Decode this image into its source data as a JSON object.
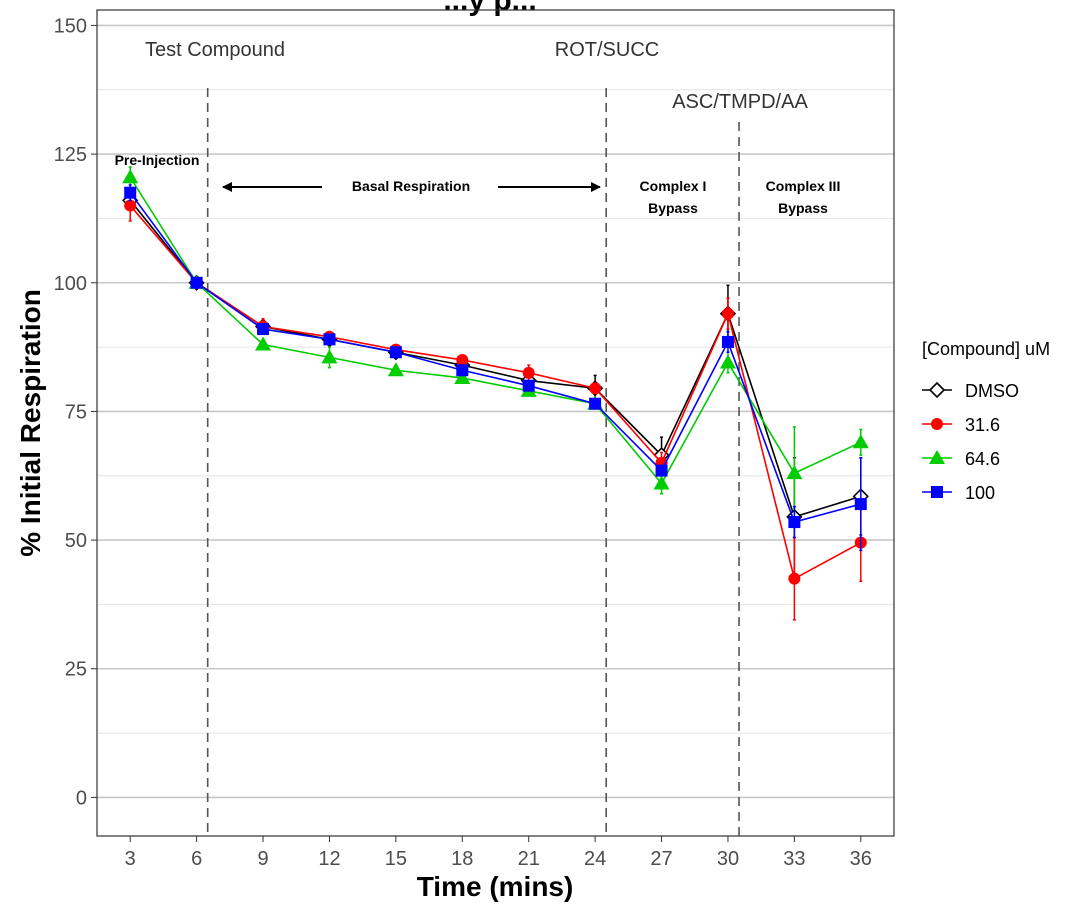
{
  "chart_data": {
    "type": "line",
    "title": "...y p...",
    "xlabel": "Time (mins)",
    "ylabel": "% Initial Respiration",
    "x": [
      3,
      6,
      9,
      12,
      15,
      18,
      21,
      24,
      27,
      30,
      33,
      36
    ],
    "xlim": [
      1.5,
      37.5
    ],
    "ylim": [
      -7.5,
      153
    ],
    "y_ticks": [
      0,
      25,
      50,
      75,
      100,
      125,
      150
    ],
    "x_ticks": [
      3,
      6,
      9,
      12,
      15,
      18,
      21,
      24,
      27,
      30,
      33,
      36
    ],
    "grid": true,
    "legend_title": "[Compound] uM",
    "legend_position": "right",
    "series": [
      {
        "name": "DMSO",
        "color": "#000000",
        "marker": "diamond-open",
        "values": [
          116,
          100,
          91.5,
          89,
          86.5,
          84,
          81,
          79.5,
          66.5,
          94,
          54.5,
          58.5
        ],
        "err": [
          1.5,
          0.5,
          1,
          0.8,
          0.8,
          0.8,
          0.8,
          2.5,
          3.5,
          5.5,
          11.5,
          7.5
        ]
      },
      {
        "name": "31.6",
        "color": "#ff0000",
        "marker": "circle",
        "values": [
          115,
          100,
          91.5,
          89.5,
          87,
          85,
          82.5,
          79.5,
          65,
          94,
          42.5,
          49.5
        ],
        "err": [
          3,
          0.5,
          1.5,
          1,
          0.8,
          0.8,
          1.5,
          1,
          2,
          3,
          8,
          7.5
        ]
      },
      {
        "name": "64.6",
        "color": "#00cc00",
        "marker": "triangle",
        "values": [
          120.5,
          100,
          88,
          85.5,
          83,
          81.5,
          79,
          76.5,
          61,
          84.5,
          63,
          69
        ],
        "err": [
          2,
          0.8,
          0.8,
          2,
          0.8,
          0.8,
          0.8,
          0.8,
          2,
          2,
          9,
          2.5
        ]
      },
      {
        "name": "100",
        "color": "#0000ff",
        "marker": "square",
        "values": [
          117.5,
          100,
          91,
          89,
          86.5,
          83,
          80,
          76.5,
          63.5,
          88.5,
          53.5,
          57
        ],
        "err": [
          1.5,
          0.5,
          1,
          0.8,
          0.8,
          0.8,
          0.8,
          0.8,
          1,
          2,
          3,
          9
        ]
      }
    ],
    "vertical_lines": [
      6.5,
      24.5,
      30.5
    ],
    "annotations": {
      "test_compound": "Test Compound",
      "rot_succ": "ROT/SUCC",
      "asc_tmpd_aa": "ASC/TMPD/AA",
      "pre_injection": "Pre-Injection",
      "basal_respiration": "Basal Respiration",
      "complex1_line1": "Complex I",
      "complex1_line2": "Bypass",
      "complex3_line1": "Complex III",
      "complex3_line2": "Bypass"
    }
  }
}
